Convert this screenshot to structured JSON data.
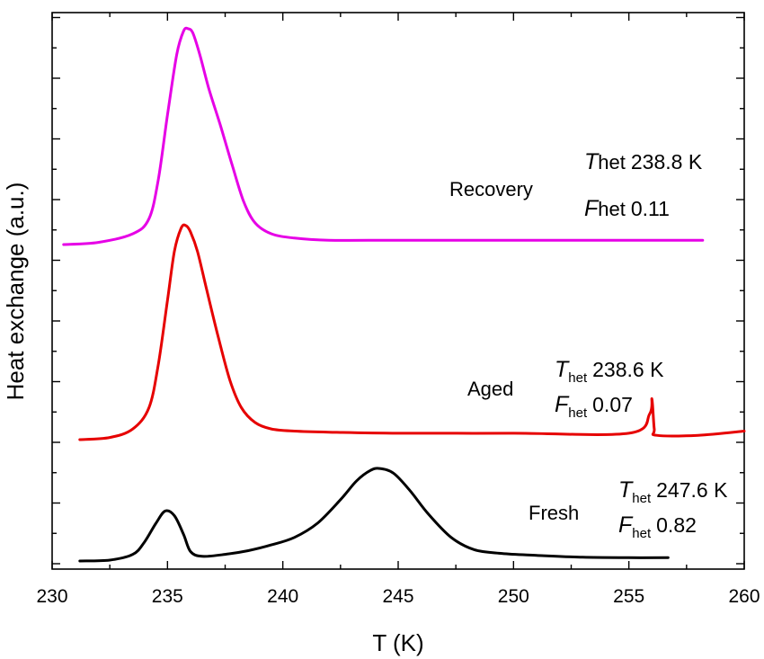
{
  "chart_data": {
    "type": "line",
    "title": "",
    "xlabel": "T (K)",
    "ylabel": "Heat exchange (a.u.)",
    "xlim": [
      230,
      260
    ],
    "x_ticks": [
      230,
      235,
      240,
      245,
      250,
      255,
      260
    ],
    "y_ticks_labeled": false,
    "grid": false,
    "series": [
      {
        "name": "Recovery",
        "color": "#e600e6",
        "x": [
          230.5,
          232.0,
          233.5,
          234.2,
          234.6,
          235.0,
          235.4,
          235.7,
          235.9,
          236.1,
          236.4,
          236.8,
          237.3,
          237.8,
          238.3,
          238.8,
          239.5,
          240.5,
          242.0,
          245.0,
          250.0,
          255.0,
          258.2
        ],
        "values": [
          0.0,
          0.01,
          0.05,
          0.12,
          0.3,
          0.6,
          0.88,
          0.99,
          1.0,
          0.98,
          0.88,
          0.72,
          0.55,
          0.37,
          0.2,
          0.1,
          0.05,
          0.03,
          0.02,
          0.02,
          0.02,
          0.02,
          0.02
        ]
      },
      {
        "name": "Aged",
        "color": "#e60000",
        "x": [
          231.2,
          232.5,
          233.5,
          234.2,
          234.6,
          235.0,
          235.3,
          235.6,
          235.8,
          236.0,
          236.3,
          236.7,
          237.2,
          237.7,
          238.2,
          238.8,
          239.5,
          240.5,
          242.0,
          245.0,
          250.0,
          255.0,
          255.9,
          256.0,
          256.1,
          256.2,
          258.0,
          260.0
        ],
        "values": [
          0.0,
          0.01,
          0.05,
          0.15,
          0.35,
          0.65,
          0.88,
          0.99,
          1.0,
          0.97,
          0.88,
          0.7,
          0.48,
          0.28,
          0.15,
          0.08,
          0.05,
          0.04,
          0.035,
          0.03,
          0.03,
          0.03,
          0.12,
          0.19,
          0.05,
          0.02,
          0.02,
          0.04
        ]
      },
      {
        "name": "Fresh",
        "color": "#000000",
        "x": [
          231.2,
          232.5,
          233.5,
          234.0,
          234.5,
          234.9,
          235.3,
          235.7,
          236.0,
          236.5,
          237.5,
          238.5,
          239.5,
          240.5,
          241.5,
          242.5,
          243.2,
          243.8,
          244.2,
          244.8,
          245.5,
          246.3,
          247.3,
          248.3,
          249.5,
          251.0,
          253.0,
          255.0,
          256.7
        ],
        "values": [
          0.0,
          0.01,
          0.07,
          0.2,
          0.4,
          0.53,
          0.48,
          0.28,
          0.1,
          0.05,
          0.07,
          0.11,
          0.17,
          0.25,
          0.4,
          0.65,
          0.85,
          0.96,
          0.98,
          0.93,
          0.75,
          0.5,
          0.25,
          0.12,
          0.08,
          0.06,
          0.04,
          0.035,
          0.035
        ]
      }
    ],
    "annotations": [
      {
        "series": "Recovery",
        "label": "Recovery",
        "T_het": "238.8 K",
        "F_het": "0.11"
      },
      {
        "series": "Aged",
        "label": "Aged",
        "T_het": "238.6 K",
        "F_het": "0.07"
      },
      {
        "series": "Fresh",
        "label": "Fresh",
        "T_het": "247.6 K",
        "F_het": "0.82"
      }
    ],
    "symbols": {
      "T": "T",
      "F": "F",
      "sub": "het"
    }
  }
}
